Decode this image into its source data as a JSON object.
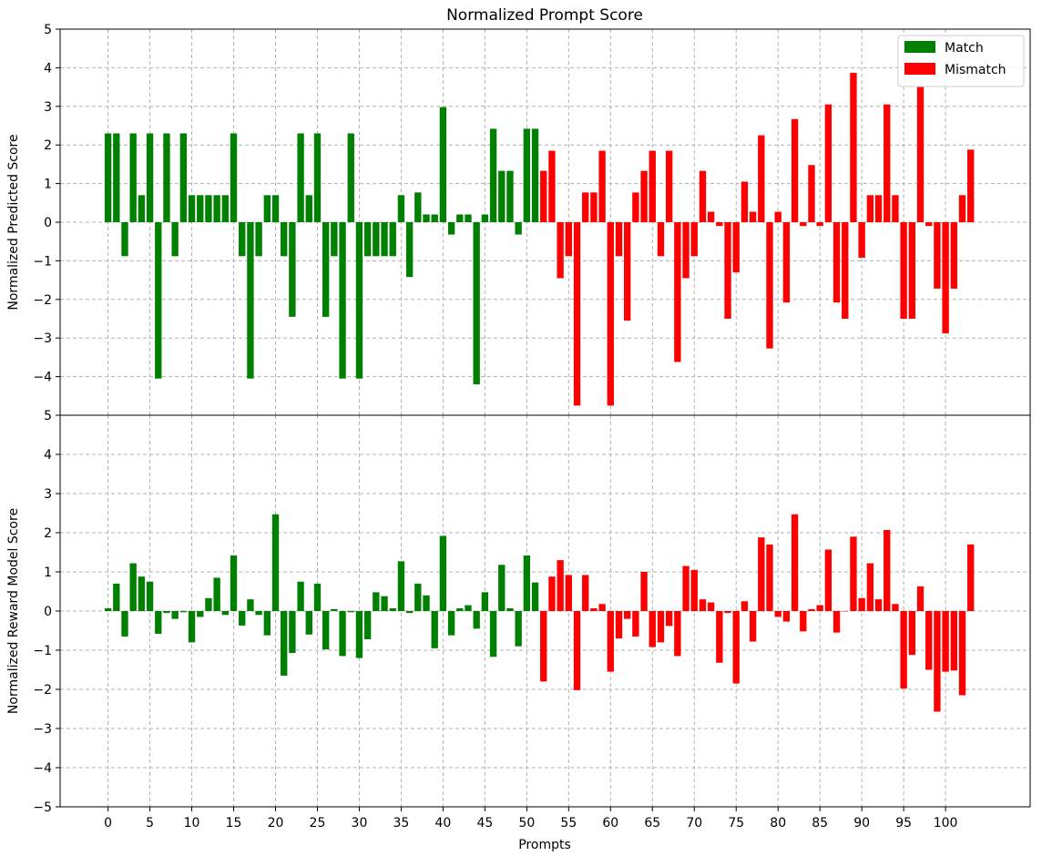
{
  "chart_data": [
    {
      "type": "bar",
      "title": "Normalized Prompt Score",
      "xlabel": "",
      "ylabel": "Normalized Predicted Score",
      "ylim": [
        -5,
        5
      ],
      "yticks": [
        "−4",
        "−3",
        "−2",
        "−1",
        "0",
        "1",
        "2",
        "3",
        "4",
        "5"
      ],
      "grid": true,
      "legend_position": "top-right",
      "series": [
        {
          "name": "Match",
          "color": "#008000",
          "range": [
            0,
            51
          ],
          "values": [
            2.3,
            2.3,
            -0.88,
            2.3,
            0.7,
            2.3,
            -4.05,
            2.3,
            -0.88,
            2.3,
            0.7,
            0.7,
            0.7,
            0.7,
            0.7,
            2.3,
            -0.88,
            -4.05,
            -0.88,
            0.7,
            0.7,
            -0.88,
            -2.45,
            2.3,
            0.7,
            2.3,
            -2.45,
            -0.88,
            -4.05,
            2.3,
            -4.05,
            -0.88,
            -0.88,
            -0.88,
            -0.88,
            0.7,
            -1.42,
            0.77,
            0.2,
            0.2,
            2.98,
            -0.32,
            0.2,
            0.2,
            -4.2,
            0.2,
            2.42,
            1.33,
            1.33,
            -0.32,
            2.42,
            2.42
          ]
        },
        {
          "name": "Mismatch",
          "color": "#ff0000",
          "range": [
            52,
            103
          ],
          "values": [
            1.33,
            1.85,
            -1.45,
            -0.88,
            -4.75,
            0.77,
            0.77,
            1.85,
            -4.75,
            -0.88,
            -2.55,
            0.77,
            1.33,
            1.85,
            -0.88,
            1.85,
            -3.62,
            -1.45,
            -0.88,
            1.33,
            0.27,
            -0.1,
            -2.5,
            -1.3,
            1.05,
            0.27,
            2.25,
            -3.27,
            0.27,
            -2.08,
            2.67,
            -0.1,
            1.48,
            -0.1,
            3.05,
            -2.08,
            -2.5,
            3.87,
            -0.92,
            0.7,
            0.7,
            3.05,
            0.7,
            -2.5,
            -2.5,
            3.5,
            -0.1,
            -1.72,
            -2.88,
            -1.72,
            0.7,
            1.88
          ]
        }
      ]
    },
    {
      "type": "bar",
      "title": "",
      "xlabel": "Prompts",
      "ylabel": "Normalized Reward Model Score",
      "ylim": [
        -5,
        5
      ],
      "yticks": [
        "−5",
        "−4",
        "−3",
        "−2",
        "−1",
        "0",
        "1",
        "2",
        "3",
        "4",
        "5"
      ],
      "xticks": [
        "0",
        "5",
        "10",
        "15",
        "20",
        "25",
        "30",
        "35",
        "40",
        "45",
        "50",
        "55",
        "60",
        "65",
        "70",
        "75",
        "80",
        "85",
        "90",
        "95",
        "100"
      ],
      "grid": true,
      "series": [
        {
          "name": "Match",
          "color": "#008000",
          "range": [
            0,
            51
          ],
          "values": [
            0.07,
            0.7,
            -0.65,
            1.22,
            0.88,
            0.75,
            -0.58,
            -0.05,
            -0.2,
            -0.03,
            -0.8,
            -0.15,
            0.33,
            0.85,
            -0.1,
            1.42,
            -0.37,
            0.3,
            -0.1,
            -0.62,
            2.47,
            -1.65,
            -1.07,
            0.75,
            -0.6,
            0.7,
            -0.98,
            0.05,
            -1.15,
            -0.03,
            -1.2,
            -0.72,
            0.48,
            0.38,
            0.07,
            1.27,
            -0.05,
            0.7,
            0.4,
            -0.95,
            1.92,
            -0.62,
            0.07,
            0.15,
            -0.45,
            0.48,
            -1.17,
            1.18,
            0.07,
            -0.9,
            1.42,
            0.73
          ]
        },
        {
          "name": "Mismatch",
          "color": "#ff0000",
          "range": [
            52,
            103
          ],
          "values": [
            -1.8,
            0.88,
            1.3,
            0.92,
            -2.02,
            0.92,
            0.07,
            0.18,
            -1.55,
            -0.7,
            -0.2,
            -0.65,
            1.0,
            -0.92,
            -0.8,
            -0.38,
            -1.15,
            1.15,
            1.05,
            0.3,
            0.22,
            -1.32,
            -0.05,
            -1.85,
            0.25,
            -0.78,
            1.88,
            1.7,
            -0.15,
            -0.27,
            2.47,
            -0.52,
            0.05,
            0.15,
            1.57,
            -0.55,
            0.0,
            1.9,
            0.33,
            1.22,
            0.3,
            2.07,
            0.18,
            -1.98,
            -1.12,
            0.63,
            -1.5,
            -2.57,
            -1.55,
            -1.52,
            -2.15,
            1.7
          ]
        }
      ]
    }
  ]
}
